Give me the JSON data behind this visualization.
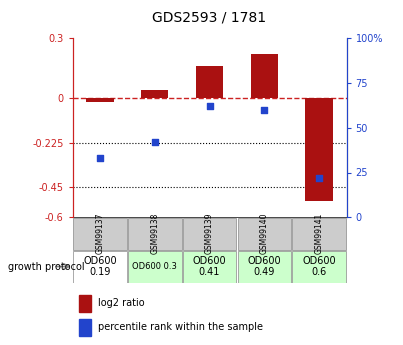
{
  "title": "GDS2593 / 1781",
  "samples": [
    "GSM99137",
    "GSM99138",
    "GSM99139",
    "GSM99140",
    "GSM99141"
  ],
  "log2_ratio": [
    -0.02,
    0.04,
    0.16,
    0.22,
    -0.52
  ],
  "percentile_rank": [
    33,
    42,
    62,
    60,
    22
  ],
  "left_ylim": [
    -0.6,
    0.3
  ],
  "right_ylim": [
    0,
    100
  ],
  "left_yticks": [
    0.3,
    0,
    -0.225,
    -0.45,
    -0.6
  ],
  "right_yticks": [
    100,
    75,
    50,
    25,
    0
  ],
  "left_ytick_labels": [
    "0.3",
    "0",
    "-0.225",
    "-0.45",
    "-0.6"
  ],
  "right_ytick_labels": [
    "100%",
    "75",
    "50",
    "25",
    "0"
  ],
  "dotted_hlines": [
    -0.225,
    -0.45
  ],
  "bar_color": "#aa1111",
  "dot_color": "#2244cc",
  "growth_protocol_labels": [
    "OD600\n0.19",
    "OD600 0.3",
    "OD600\n0.41",
    "OD600\n0.49",
    "OD600\n0.6"
  ],
  "growth_protocol_colors": [
    "#ffffff",
    "#ccffcc",
    "#ccffcc",
    "#ccffcc",
    "#ccffcc"
  ],
  "growth_protocol_fontsize": [
    7,
    6,
    7,
    7,
    7
  ],
  "table_header_color": "#cccccc",
  "background_color": "#ffffff",
  "legend_items": [
    "log2 ratio",
    "percentile rank within the sample"
  ]
}
